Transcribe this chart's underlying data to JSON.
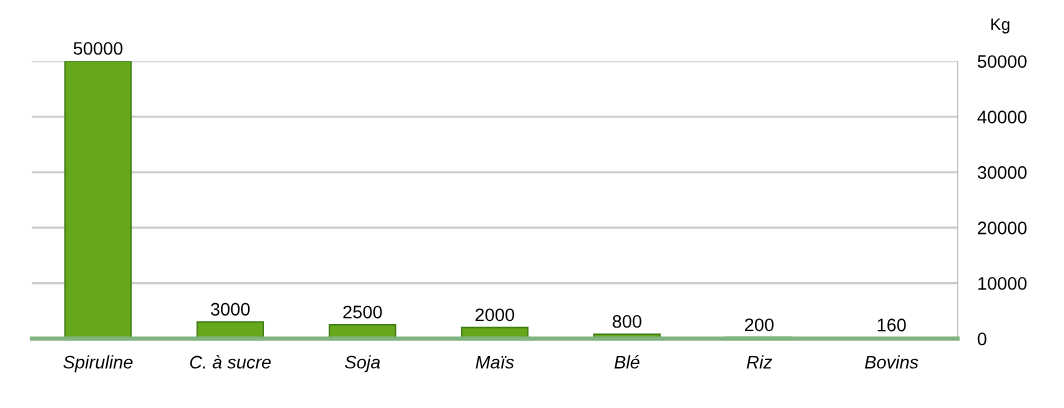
{
  "chart_data": {
    "type": "bar",
    "categories": [
      "Spiruline",
      "C. à sucre",
      "Soja",
      "Maïs",
      "Blé",
      "Riz",
      "Bovins"
    ],
    "values": [
      50000,
      3000,
      2500,
      2000,
      800,
      200,
      160
    ],
    "color": "#66a81c",
    "ylabel": "Kg",
    "ylim": [
      0,
      50000
    ],
    "yticks": [
      0,
      10000,
      20000,
      30000,
      40000,
      50000
    ],
    "grid": "y",
    "data_labels": true
  }
}
